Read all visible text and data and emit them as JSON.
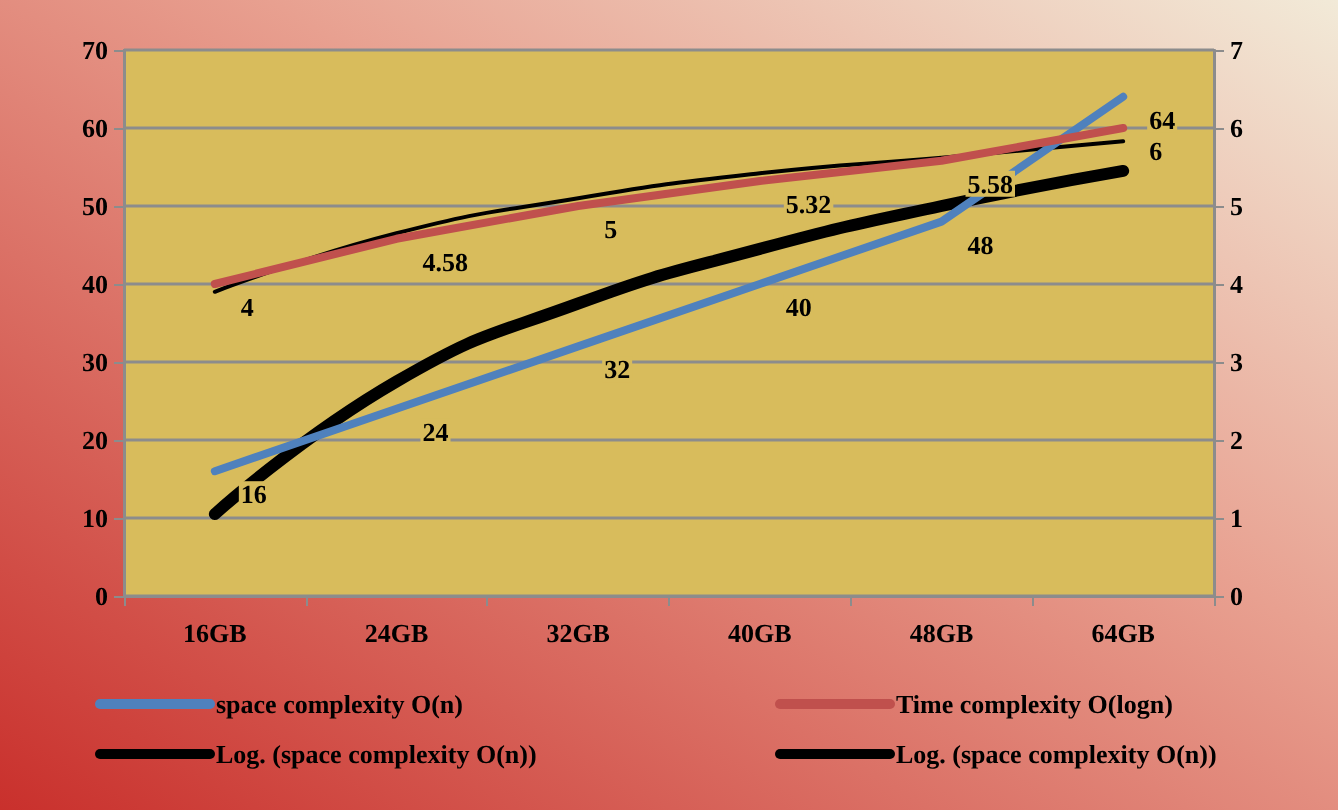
{
  "chart_data": {
    "type": "line",
    "categories": [
      "16GB",
      "24GB",
      "32GB",
      "40GB",
      "48GB",
      "64GB"
    ],
    "series": [
      {
        "name": "space complexity O(n)",
        "color": "#4f81bd",
        "values": [
          16,
          24,
          32,
          40,
          48,
          64
        ],
        "value_labels": [
          "16",
          "24",
          "32",
          "40",
          "48",
          "64"
        ]
      },
      {
        "name": "Time complexity O(logn)",
        "color": "#c0504d",
        "axis": "y2",
        "values": [
          4,
          4.58,
          5,
          5.32,
          5.58,
          6
        ],
        "value_labels": [
          "4",
          "4.58",
          "5",
          "5.32",
          "5.58",
          "6"
        ]
      },
      {
        "name": "Log. (space complexity O(n))",
        "color": "#000000",
        "axis": "y2",
        "values": [
          3.9,
          4.65,
          5.1,
          5.42,
          5.62,
          5.83
        ]
      },
      {
        "name": "Log. (space complexity O(n))",
        "color": "#000000",
        "values": [
          10.5,
          27.5,
          37.5,
          44.5,
          50,
          54.5
        ]
      }
    ],
    "ylim": [
      0,
      70
    ],
    "yticks": [
      0,
      10,
      20,
      30,
      40,
      50,
      60,
      70
    ],
    "y2lim": [
      0,
      7
    ],
    "y2ticks": [
      0,
      1,
      2,
      3,
      4,
      5,
      6,
      7
    ],
    "grid": "y",
    "legend": "bottom"
  }
}
